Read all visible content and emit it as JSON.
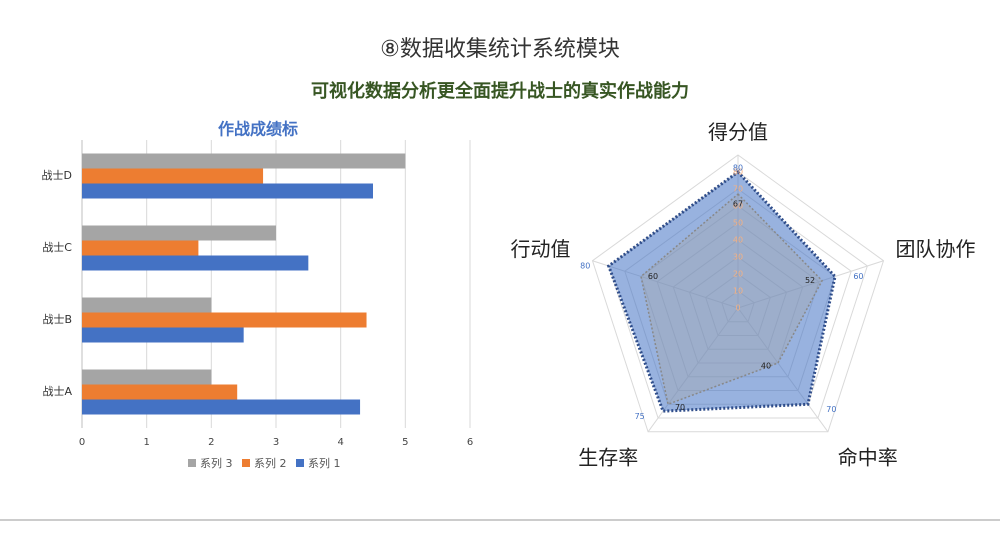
{
  "header": {
    "title": "⑧数据收集统计系统模块",
    "subtitle": "可视化数据分析更全面提升战士的真实作战能力"
  },
  "chart_data": [
    {
      "type": "bar",
      "orientation": "horizontal",
      "title": "作战成绩标",
      "categories": [
        "战士A",
        "战士B",
        "战士C",
        "战士D"
      ],
      "series": [
        {
          "name": "系列 1",
          "color": "#4472c4",
          "values": [
            4.3,
            2.5,
            3.5,
            4.5
          ]
        },
        {
          "name": "系列 2",
          "color": "#ed7d31",
          "values": [
            2.4,
            4.4,
            1.8,
            2.8
          ]
        },
        {
          "name": "系列 3",
          "color": "#a5a5a5",
          "values": [
            2.0,
            2.0,
            3.0,
            5.0
          ]
        }
      ],
      "xlim": [
        0,
        6
      ],
      "xticks": [
        0,
        1,
        2,
        3,
        4,
        5,
        6
      ],
      "grid": true,
      "legend": "bottom"
    },
    {
      "type": "radar",
      "categories": [
        "得分值",
        "团队协作",
        "命中率",
        "生存率",
        "行动值"
      ],
      "series": [
        {
          "color": "#4472c4",
          "values": [
            80,
            60,
            70,
            75,
            80
          ]
        },
        {
          "color": "#a5a5a5",
          "values": [
            67,
            52,
            40,
            70,
            60
          ]
        }
      ],
      "rlim": [
        0,
        90
      ],
      "rticks": [
        0,
        10,
        20,
        30,
        40,
        50,
        60,
        70,
        80
      ]
    }
  ]
}
